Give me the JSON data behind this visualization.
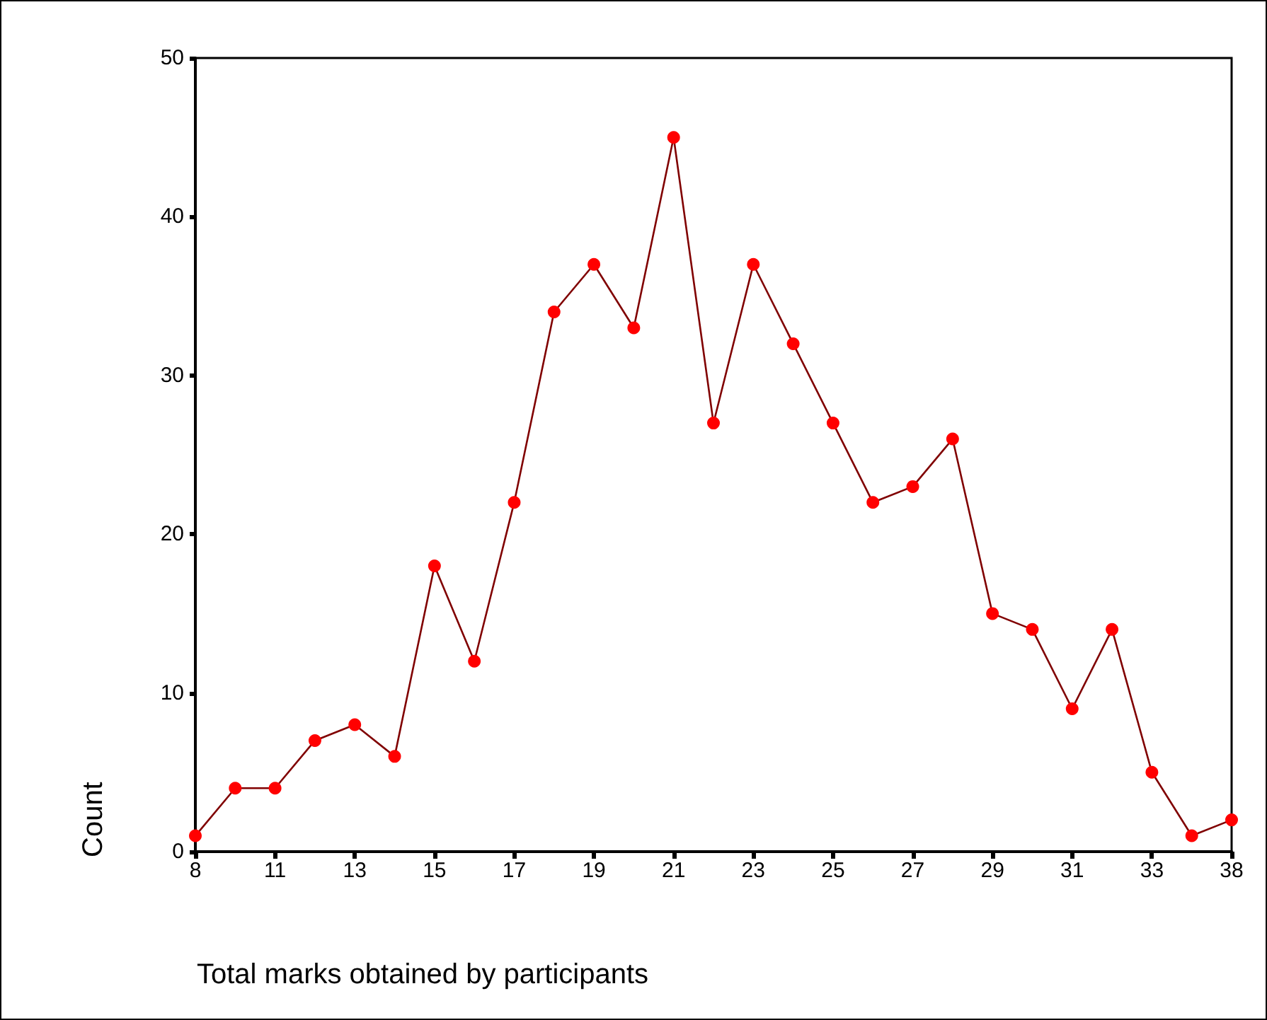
{
  "chart_data": {
    "type": "line",
    "xlabel": "Total marks obtained by participants",
    "ylabel": "Count",
    "categories": [
      "8",
      null,
      "11",
      null,
      "13",
      null,
      "15",
      null,
      "17",
      null,
      "19",
      null,
      "21",
      null,
      "23",
      null,
      "25",
      null,
      "27",
      null,
      "29",
      null,
      "31",
      null,
      "33",
      null,
      "38"
    ],
    "values": [
      1,
      4,
      4,
      7,
      8,
      6,
      18,
      12,
      22,
      34,
      37,
      33,
      45,
      27,
      37,
      32,
      27,
      22,
      23,
      26,
      15,
      14,
      9,
      14,
      5,
      1,
      2
    ],
    "color": "#ff0000",
    "ylim": [
      0,
      50
    ],
    "yticks": [
      0,
      10,
      20,
      30,
      40,
      50
    ],
    "grid": false,
    "marker": "circle",
    "line_style": "solid"
  }
}
